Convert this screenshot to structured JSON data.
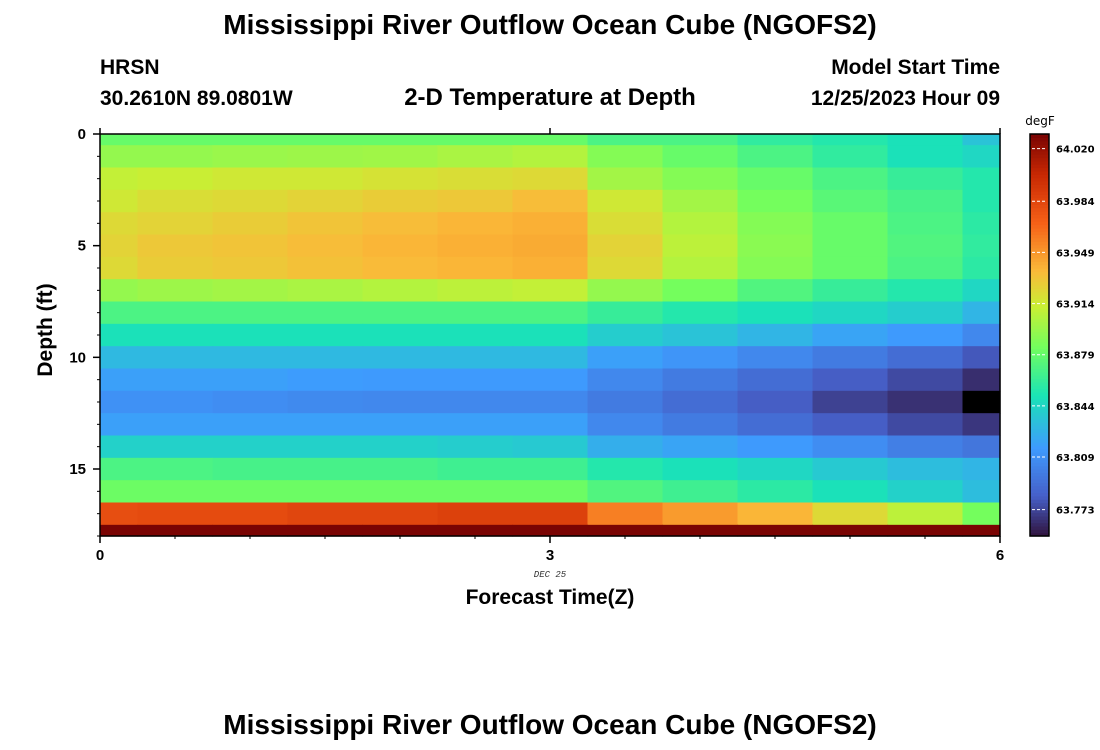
{
  "title": "Mississippi River Outflow Ocean Cube (NGOFS2)",
  "bottom_title": "Mississippi River Outflow Ocean Cube (NGOFS2)",
  "station": {
    "name": "HRSN",
    "coords": "30.2610N  89.0801W"
  },
  "model_start": {
    "label": "Model Start Time",
    "value": "12/25/2023 Hour 09"
  },
  "chart_data": {
    "type": "heatmap",
    "title": "2-D Temperature at Depth",
    "xlabel": "Forecast Time(Z)",
    "ylabel": "Depth (ft)",
    "date_label": "DEC 25",
    "units": "degF",
    "x_range": [
      0,
      6
    ],
    "y_range": [
      0,
      18
    ],
    "x_ticks": [
      0,
      3,
      6
    ],
    "x_tick_labels": [
      "0",
      "3",
      "6"
    ],
    "y_ticks": [
      0,
      5,
      10,
      15
    ],
    "y_tick_labels": [
      "0",
      "5",
      "10",
      "15"
    ],
    "colorbar": {
      "min": 63.755,
      "max": 64.03,
      "ticks": [
        64.02,
        63.984,
        63.949,
        63.914,
        63.879,
        63.844,
        63.809,
        63.773
      ],
      "tick_labels": [
        "64.020",
        "63.984",
        "63.949",
        "63.914",
        "63.879",
        "63.844",
        "63.809",
        "63.773"
      ]
    },
    "x_edges": [
      0,
      0.25,
      0.75,
      1.25,
      1.75,
      2.25,
      2.75,
      3.25,
      3.75,
      4.25,
      4.75,
      5.25,
      5.75,
      6.0
    ],
    "y_edges": [
      0,
      0.5,
      1.5,
      2.5,
      3.5,
      4.5,
      5.5,
      6.5,
      7.5,
      8.5,
      9.5,
      10.5,
      11.5,
      12.5,
      13.5,
      14.5,
      15.5,
      16.5,
      17.5,
      18.0
    ],
    "values": [
      [
        63.88,
        63.88,
        63.88,
        63.88,
        63.88,
        63.88,
        63.88,
        63.87,
        63.87,
        63.86,
        63.855,
        63.85,
        63.835
      ],
      [
        63.895,
        63.895,
        63.897,
        63.898,
        63.899,
        63.902,
        63.905,
        63.89,
        63.88,
        63.87,
        63.86,
        63.85,
        63.845
      ],
      [
        63.91,
        63.912,
        63.915,
        63.915,
        63.918,
        63.92,
        63.922,
        63.9,
        63.89,
        63.88,
        63.87,
        63.862,
        63.855
      ],
      [
        63.915,
        63.92,
        63.922,
        63.925,
        63.928,
        63.93,
        63.935,
        63.915,
        63.9,
        63.885,
        63.875,
        63.868,
        63.855
      ],
      [
        63.922,
        63.925,
        63.928,
        63.932,
        63.935,
        63.938,
        63.94,
        63.92,
        63.905,
        63.89,
        63.88,
        63.87,
        63.858
      ],
      [
        63.925,
        63.93,
        63.932,
        63.935,
        63.938,
        63.94,
        63.942,
        63.925,
        63.908,
        63.892,
        63.88,
        63.872,
        63.86
      ],
      [
        63.922,
        63.928,
        63.93,
        63.933,
        63.936,
        63.938,
        63.94,
        63.922,
        63.905,
        63.89,
        63.88,
        63.87,
        63.858
      ],
      [
        63.895,
        63.898,
        63.9,
        63.902,
        63.905,
        63.908,
        63.91,
        63.895,
        63.885,
        63.872,
        63.862,
        63.855,
        63.845
      ],
      [
        63.87,
        63.87,
        63.87,
        63.87,
        63.87,
        63.87,
        63.87,
        63.862,
        63.855,
        63.85,
        63.845,
        63.84,
        63.828
      ],
      [
        63.85,
        63.85,
        63.85,
        63.85,
        63.85,
        63.85,
        63.85,
        63.84,
        63.835,
        63.828,
        63.82,
        63.815,
        63.805
      ],
      [
        63.83,
        63.83,
        63.83,
        63.83,
        63.83,
        63.83,
        63.83,
        63.818,
        63.812,
        63.805,
        63.798,
        63.79,
        63.78
      ],
      [
        63.818,
        63.818,
        63.818,
        63.816,
        63.815,
        63.815,
        63.815,
        63.805,
        63.798,
        63.79,
        63.782,
        63.775,
        63.765
      ],
      [
        63.81,
        63.81,
        63.808,
        63.806,
        63.805,
        63.805,
        63.805,
        63.798,
        63.79,
        63.782,
        63.772,
        63.766,
        63.755
      ],
      [
        63.818,
        63.818,
        63.818,
        63.818,
        63.818,
        63.818,
        63.818,
        63.805,
        63.798,
        63.79,
        63.782,
        63.775,
        63.768
      ],
      [
        63.842,
        63.842,
        63.842,
        63.842,
        63.842,
        63.84,
        63.838,
        63.825,
        63.82,
        63.815,
        63.808,
        63.8,
        63.795
      ],
      [
        63.87,
        63.87,
        63.868,
        63.868,
        63.868,
        63.865,
        63.865,
        63.855,
        63.85,
        63.845,
        63.838,
        63.832,
        63.828
      ],
      [
        63.882,
        63.882,
        63.882,
        63.882,
        63.882,
        63.882,
        63.882,
        63.872,
        63.865,
        63.858,
        63.85,
        63.842,
        63.832
      ],
      [
        63.98,
        63.982,
        63.982,
        63.985,
        63.985,
        63.988,
        63.988,
        63.958,
        63.948,
        63.938,
        63.922,
        63.908,
        63.885
      ],
      [
        64.03,
        64.03,
        64.03,
        64.03,
        64.03,
        64.03,
        64.03,
        64.03,
        64.03,
        64.03,
        64.03,
        64.03,
        64.03
      ]
    ]
  }
}
